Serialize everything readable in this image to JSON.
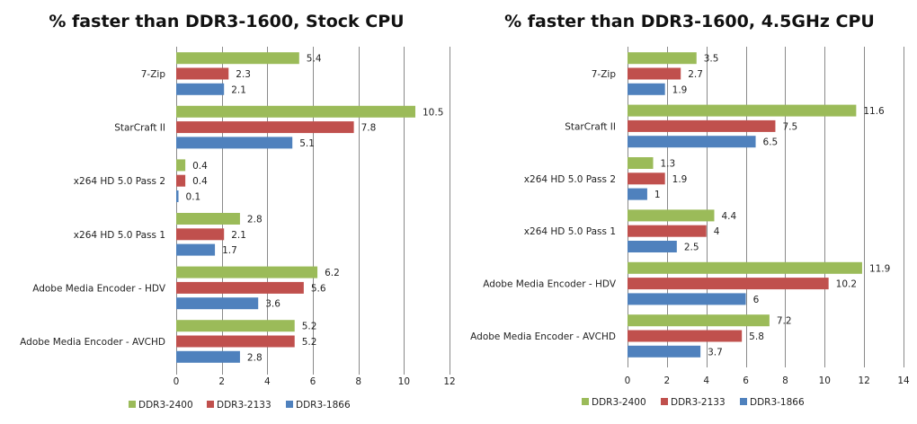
{
  "chart_data": [
    {
      "type": "bar",
      "orientation": "horizontal",
      "title": "% faster than DDR3-1600, Stock CPU",
      "xlabel": "",
      "ylabel": "",
      "categories": [
        "7-Zip",
        "StarCraft II",
        "x264 HD 5.0 Pass 2",
        "x264 HD 5.0 Pass 1",
        "Adobe Media Encoder - HDV",
        "Adobe Media Encoder - AVCHD"
      ],
      "series": [
        {
          "name": "DDR3-2400",
          "color": "#9bbb59",
          "values": [
            5.4,
            10.5,
            0.4,
            2.8,
            6.2,
            5.2
          ]
        },
        {
          "name": "DDR3-2133",
          "color": "#c0504d",
          "values": [
            2.3,
            7.8,
            0.4,
            2.1,
            5.6,
            5.2
          ]
        },
        {
          "name": "DDR3-1866",
          "color": "#4f81bd",
          "values": [
            2.1,
            5.1,
            0.1,
            1.7,
            3.6,
            2.8
          ]
        }
      ],
      "xlim": [
        0,
        12
      ],
      "xticks": [
        "0",
        "2",
        "4",
        "6",
        "8",
        "10",
        "12"
      ],
      "grid": true,
      "legend": "bottom"
    },
    {
      "type": "bar",
      "orientation": "horizontal",
      "title": "% faster than DDR3-1600, 4.5GHz CPU",
      "xlabel": "",
      "ylabel": "",
      "categories": [
        "7-Zip",
        "StarCraft II",
        "x264 HD 5.0 Pass 2",
        "x264 HD 5.0 Pass 1",
        "Adobe Media Encoder - HDV",
        "Adobe Media Encoder - AVCHD"
      ],
      "series": [
        {
          "name": "DDR3-2400",
          "color": "#9bbb59",
          "values": [
            3.5,
            11.6,
            1.3,
            4.4,
            11.9,
            7.2
          ]
        },
        {
          "name": "DDR3-2133",
          "color": "#c0504d",
          "values": [
            2.7,
            7.5,
            1.9,
            4,
            10.2,
            5.8
          ]
        },
        {
          "name": "DDR3-1866",
          "color": "#4f81bd",
          "values": [
            1.9,
            6.5,
            1,
            2.5,
            6,
            3.7
          ]
        }
      ],
      "xlim": [
        0,
        14
      ],
      "xticks": [
        "0",
        "2",
        "4",
        "6",
        "8",
        "10",
        "12",
        "14"
      ],
      "grid": true,
      "legend": "bottom"
    }
  ]
}
